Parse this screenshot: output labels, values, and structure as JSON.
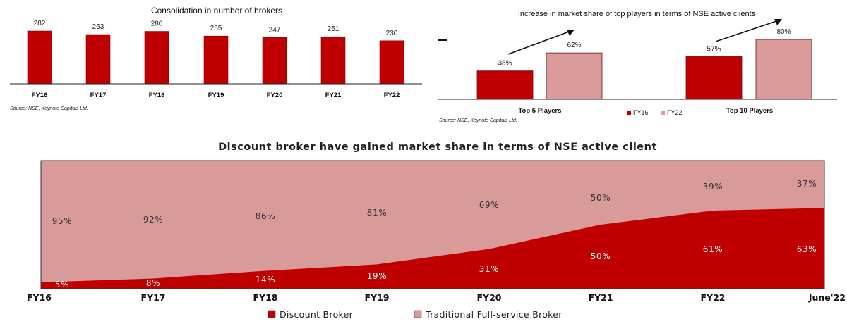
{
  "chart_data": [
    {
      "type": "bar",
      "title": "Consolidation in number of brokers",
      "categories": [
        "FY16",
        "FY17",
        "FY18",
        "FY19",
        "FY20",
        "FY21",
        "FY22"
      ],
      "values": [
        282,
        263,
        280,
        255,
        247,
        251,
        230
      ],
      "ylim": [
        0,
        300
      ],
      "color": "#c00000",
      "source": "Source: NSE, Keynote Capitals Ltd."
    },
    {
      "type": "bar",
      "title": "Increase in market share of top players in terms of NSE active clients",
      "categories": [
        "Top 5 Players",
        "Top 10 Players"
      ],
      "series": [
        {
          "name": "FY16",
          "values": [
            38,
            57
          ],
          "labels": [
            "38%",
            "57%"
          ],
          "color": "#c00000"
        },
        {
          "name": "FY22",
          "values": [
            62,
            80
          ],
          "labels": [
            "62%",
            "80%"
          ],
          "color": "#d99a9a"
        }
      ],
      "ylim": [
        0,
        100
      ],
      "legend": "bottom",
      "source": "Source: NSE, Keynote Capitals Ltd."
    },
    {
      "type": "area",
      "stacked": true,
      "title": "Discount broker have gained market share in terms of NSE active client",
      "categories": [
        "FY16",
        "FY17",
        "FY18",
        "FY19",
        "FY20",
        "FY21",
        "FY22",
        "June'22"
      ],
      "series": [
        {
          "name": "Discount Broker",
          "values": [
            5,
            8,
            14,
            19,
            31,
            50,
            61,
            63
          ],
          "labels": [
            "5%",
            "8%",
            "14%",
            "19%",
            "31%",
            "50%",
            "61%",
            "63%"
          ],
          "color": "#c00000"
        },
        {
          "name": "Traditional Full-service Broker",
          "values": [
            95,
            92,
            86,
            81,
            69,
            50,
            39,
            37
          ],
          "labels": [
            "95%",
            "92%",
            "86%",
            "81%",
            "69%",
            "50%",
            "39%",
            "37%"
          ],
          "color": "#d99a9a"
        }
      ],
      "ylim": [
        0,
        100
      ],
      "legend": "bottom"
    }
  ]
}
